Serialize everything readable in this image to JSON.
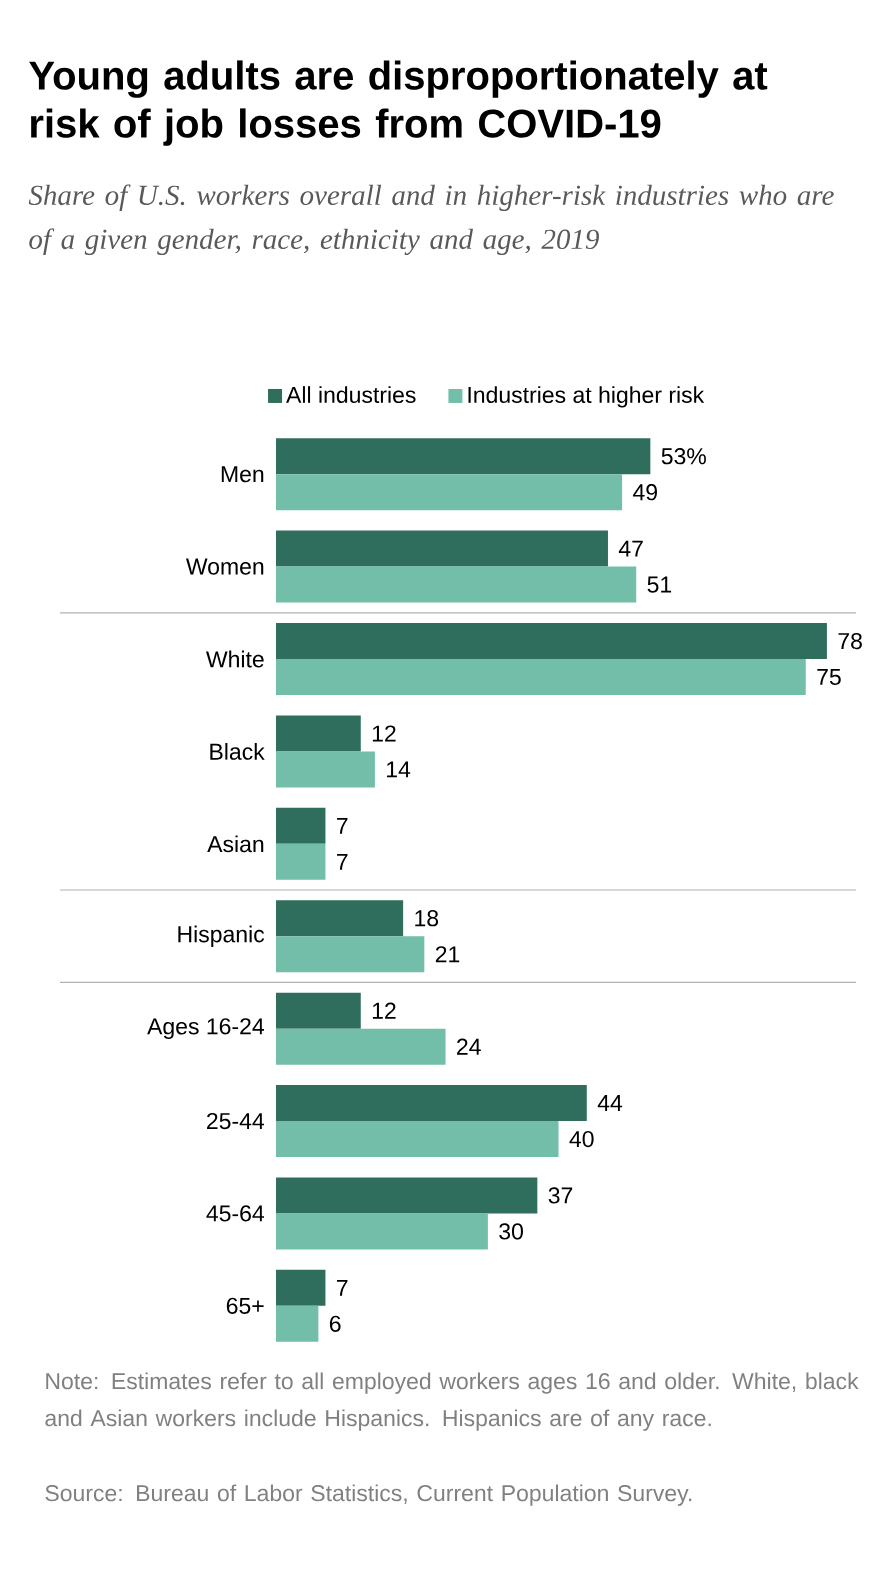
{
  "chart_data": {
    "type": "bar",
    "orientation": "horizontal",
    "title": "Young adults are disproportionately at risk of job losses from COVID-19",
    "subtitle": "Share of U.S. workers overall and in higher-risk industries who are of a given gender, race, ethnicity and age, 2019",
    "categories": [
      "Men",
      "Women",
      "White",
      "Black",
      "Asian",
      "Hispanic",
      "Ages 16-24",
      "25-44",
      "45-64",
      "65+"
    ],
    "series": [
      {
        "name": "All industries",
        "color": "#2f6e5d",
        "values": [
          53,
          47,
          78,
          12,
          7,
          18,
          12,
          44,
          37,
          7
        ],
        "value_labels": [
          "53%",
          "47",
          "78",
          "12",
          "7",
          "18",
          "12",
          "44",
          "37",
          "7"
        ]
      },
      {
        "name": "Industries at higher risk",
        "color": "#72bea9",
        "values": [
          49,
          51,
          75,
          14,
          7,
          21,
          24,
          40,
          30,
          6
        ],
        "value_labels": [
          "49",
          "51",
          "75",
          "14",
          "7",
          "21",
          "24",
          "40",
          "30",
          "6"
        ]
      }
    ],
    "legend": "top",
    "annotations": [
      "Note: Estimates refer to all employed workers ages 16 and older. White, black and Asian workers include Hispanics. Hispanics are of any race.",
      "Source: Bureau of Labor Statistics, Current Population Survey."
    ]
  }
}
